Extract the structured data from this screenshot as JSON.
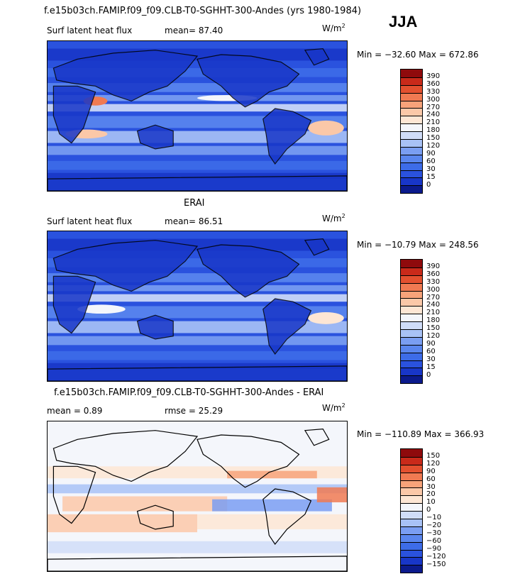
{
  "header": {
    "main_title": "f.e15b03ch.FAMIP.f09_f09.CLB-T0-SGHHT-300-Andes (yrs 1980-1984)",
    "season": "JJA"
  },
  "panels": [
    {
      "title": "",
      "variable": "Surf latent heat flux",
      "stat1": "mean=  87.40",
      "stat2": "",
      "units_base": "W/m",
      "units_exp": "2",
      "minmax": "Min = −32.60  Max = 672.86",
      "colorbar_labels": [
        "390",
        "360",
        "330",
        "300",
        "270",
        "240",
        "210",
        "180",
        "150",
        "120",
        "90",
        "60",
        "30",
        "15",
        "0"
      ]
    },
    {
      "title": "ERAI",
      "variable": "Surf latent heat flux",
      "stat1": "mean=  86.51",
      "stat2": "",
      "units_base": "W/m",
      "units_exp": "2",
      "minmax": "Min = −10.79  Max = 248.56",
      "colorbar_labels": [
        "390",
        "360",
        "330",
        "300",
        "270",
        "240",
        "210",
        "180",
        "150",
        "120",
        "90",
        "60",
        "30",
        "15",
        "0"
      ]
    },
    {
      "title": "f.e15b03ch.FAMIP.f09_f09.CLB-T0-SGHHT-300-Andes - ERAI",
      "variable": "",
      "stat1": "mean =   0.89",
      "stat2": "rmse =  25.29",
      "units_base": "W/m",
      "units_exp": "2",
      "minmax": "Min = −110.89  Max = 366.93",
      "colorbar_labels": [
        "150",
        "120",
        "90",
        "60",
        "30",
        "20",
        "10",
        "0",
        "−10",
        "−20",
        "−30",
        "−60",
        "−90",
        "−120",
        "−150"
      ]
    }
  ],
  "chart_data": [
    {
      "type": "heatmap",
      "title": "f.e15b03ch.FAMIP.f09_f09.CLB-T0-SGHHT-300-Andes (yrs 1980-1984)",
      "subtitle": "Surf latent heat flux",
      "units": "W/m2",
      "season": "JJA",
      "mean": 87.4,
      "min": -32.6,
      "max": 672.86,
      "levels": [
        0,
        15,
        30,
        60,
        90,
        120,
        150,
        180,
        210,
        240,
        270,
        300,
        330,
        360,
        390
      ],
      "colors": [
        "#0b1a8c",
        "#1836c8",
        "#2a52de",
        "#3d6ce8",
        "#5a86ee",
        "#7a9ef2",
        "#a8c2f6",
        "#d0ddf8",
        "#f4f6fb",
        "#fde6d4",
        "#fbc8a8",
        "#f7a37a",
        "#f07a52",
        "#e3502f",
        "#c92a1a",
        "#8f0a0c"
      ]
    },
    {
      "type": "heatmap",
      "title": "ERAI",
      "subtitle": "Surf latent heat flux",
      "units": "W/m2",
      "mean": 86.51,
      "min": -10.79,
      "max": 248.56,
      "levels": [
        0,
        15,
        30,
        60,
        90,
        120,
        150,
        180,
        210,
        240,
        270,
        300,
        330,
        360,
        390
      ],
      "colors": [
        "#0b1a8c",
        "#1836c8",
        "#2a52de",
        "#3d6ce8",
        "#5a86ee",
        "#7a9ef2",
        "#a8c2f6",
        "#d0ddf8",
        "#f4f6fb",
        "#fde6d4",
        "#fbc8a8",
        "#f7a37a",
        "#f07a52",
        "#e3502f",
        "#c92a1a",
        "#8f0a0c"
      ]
    },
    {
      "type": "heatmap",
      "title": "f.e15b03ch.FAMIP.f09_f09.CLB-T0-SGHHT-300-Andes - ERAI",
      "units": "W/m2",
      "mean": 0.89,
      "rmse": 25.29,
      "min": -110.89,
      "max": 366.93,
      "levels": [
        -150,
        -120,
        -90,
        -60,
        -30,
        -20,
        -10,
        0,
        10,
        20,
        30,
        60,
        90,
        120,
        150
      ],
      "colors": [
        "#0b1a8c",
        "#1836c8",
        "#2a52de",
        "#3d6ce8",
        "#5a86ee",
        "#7a9ef2",
        "#a8c2f6",
        "#d0ddf8",
        "#f4f6fb",
        "#fde6d4",
        "#fbc8a8",
        "#f7a37a",
        "#f07a52",
        "#e3502f",
        "#c92a1a",
        "#8f0a0c"
      ]
    }
  ]
}
